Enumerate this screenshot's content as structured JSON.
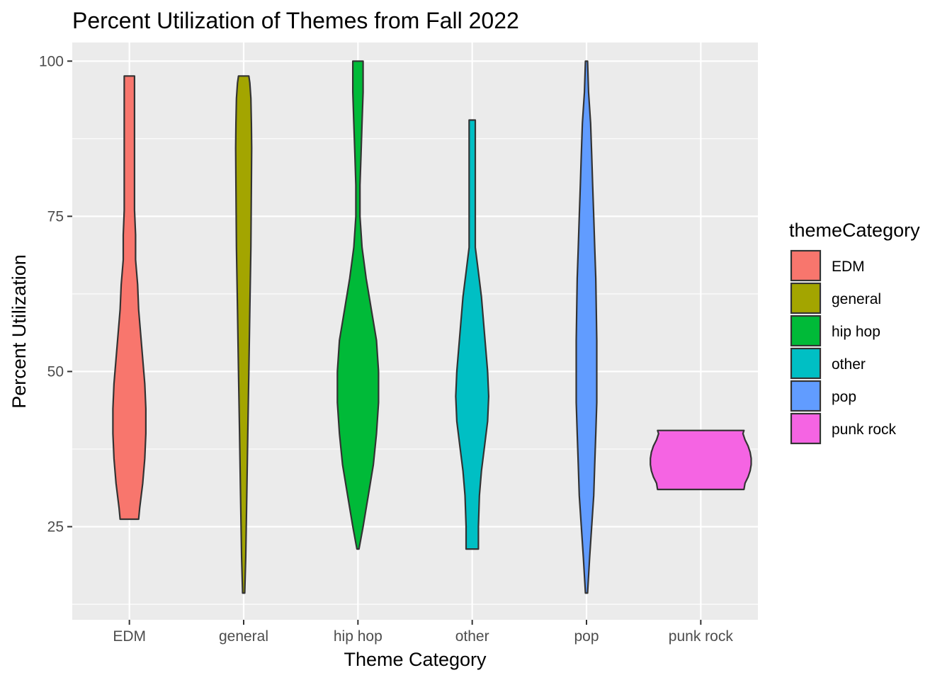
{
  "chart_data": {
    "type": "violin",
    "title": "Percent Utilization of Themes from Fall 2022",
    "xlabel": "Theme Category",
    "ylabel": "Percent Utilization",
    "ylim": [
      10,
      103
    ],
    "yticks": [
      25,
      50,
      75,
      100
    ],
    "grid": true,
    "legend_position": "right",
    "legend_title": "themeCategory",
    "categories": [
      "EDM",
      "general",
      "hip hop",
      "other",
      "pop",
      "punk rock"
    ],
    "series": [
      {
        "name": "EDM",
        "color": "#F8766D",
        "min": 26.2,
        "max": 97.6,
        "density": [
          [
            26.2,
            0.09
          ],
          [
            28,
            0.1
          ],
          [
            32,
            0.13
          ],
          [
            36,
            0.15
          ],
          [
            40,
            0.16
          ],
          [
            44,
            0.16
          ],
          [
            48,
            0.15
          ],
          [
            52,
            0.13
          ],
          [
            56,
            0.11
          ],
          [
            60,
            0.09
          ],
          [
            64,
            0.08
          ],
          [
            68,
            0.06
          ],
          [
            72,
            0.06
          ],
          [
            76,
            0.05
          ],
          [
            80,
            0.05
          ],
          [
            84,
            0.05
          ],
          [
            88,
            0.05
          ],
          [
            92,
            0.05
          ],
          [
            96,
            0.05
          ],
          [
            97.6,
            0.05
          ]
        ]
      },
      {
        "name": "general",
        "color": "#A3A500",
        "min": 14.3,
        "max": 97.6,
        "density": [
          [
            14.3,
            0.01
          ],
          [
            20,
            0.02
          ],
          [
            30,
            0.03
          ],
          [
            40,
            0.04
          ],
          [
            50,
            0.05
          ],
          [
            60,
            0.06
          ],
          [
            70,
            0.07
          ],
          [
            80,
            0.075
          ],
          [
            86,
            0.078
          ],
          [
            90,
            0.075
          ],
          [
            94,
            0.07
          ],
          [
            96.5,
            0.06
          ],
          [
            97.6,
            0.05
          ]
        ]
      },
      {
        "name": "hip hop",
        "color": "#00BA38",
        "min": 21.4,
        "max": 100,
        "density": [
          [
            21.4,
            0.01
          ],
          [
            25,
            0.05
          ],
          [
            30,
            0.1
          ],
          [
            35,
            0.15
          ],
          [
            40,
            0.18
          ],
          [
            45,
            0.2
          ],
          [
            50,
            0.2
          ],
          [
            55,
            0.18
          ],
          [
            60,
            0.13
          ],
          [
            65,
            0.08
          ],
          [
            70,
            0.04
          ],
          [
            75,
            0.02
          ],
          [
            80,
            0.02
          ],
          [
            85,
            0.03
          ],
          [
            90,
            0.04
          ],
          [
            95,
            0.05
          ],
          [
            100,
            0.05
          ]
        ]
      },
      {
        "name": "other",
        "color": "#00BFC4",
        "min": 21.4,
        "max": 90.5,
        "density": [
          [
            21.4,
            0.06
          ],
          [
            25,
            0.06
          ],
          [
            30,
            0.07
          ],
          [
            34,
            0.09
          ],
          [
            38,
            0.12
          ],
          [
            42,
            0.15
          ],
          [
            46,
            0.16
          ],
          [
            50,
            0.15
          ],
          [
            54,
            0.13
          ],
          [
            58,
            0.11
          ],
          [
            62,
            0.09
          ],
          [
            66,
            0.06
          ],
          [
            70,
            0.03
          ],
          [
            74,
            0.03
          ],
          [
            78,
            0.03
          ],
          [
            82,
            0.03
          ],
          [
            86,
            0.03
          ],
          [
            90.5,
            0.03
          ]
        ]
      },
      {
        "name": "pop",
        "color": "#619CFF",
        "min": 14.3,
        "max": 100,
        "density": [
          [
            14.3,
            0.01
          ],
          [
            20,
            0.03
          ],
          [
            25,
            0.05
          ],
          [
            30,
            0.07
          ],
          [
            35,
            0.08
          ],
          [
            40,
            0.09
          ],
          [
            45,
            0.1
          ],
          [
            50,
            0.1
          ],
          [
            55,
            0.1
          ],
          [
            60,
            0.095
          ],
          [
            65,
            0.09
          ],
          [
            70,
            0.08
          ],
          [
            75,
            0.07
          ],
          [
            80,
            0.06
          ],
          [
            85,
            0.05
          ],
          [
            90,
            0.04
          ],
          [
            95,
            0.02
          ],
          [
            100,
            0.01
          ]
        ]
      },
      {
        "name": "punk rock",
        "color": "#F564E3",
        "min": 31,
        "max": 40.5,
        "density": [
          [
            31,
            0.42
          ],
          [
            32,
            0.43
          ],
          [
            33,
            0.46
          ],
          [
            34,
            0.48
          ],
          [
            35,
            0.49
          ],
          [
            36,
            0.49
          ],
          [
            37,
            0.48
          ],
          [
            38,
            0.46
          ],
          [
            39,
            0.43
          ],
          [
            40,
            0.41
          ],
          [
            40.5,
            0.42
          ]
        ]
      }
    ]
  }
}
